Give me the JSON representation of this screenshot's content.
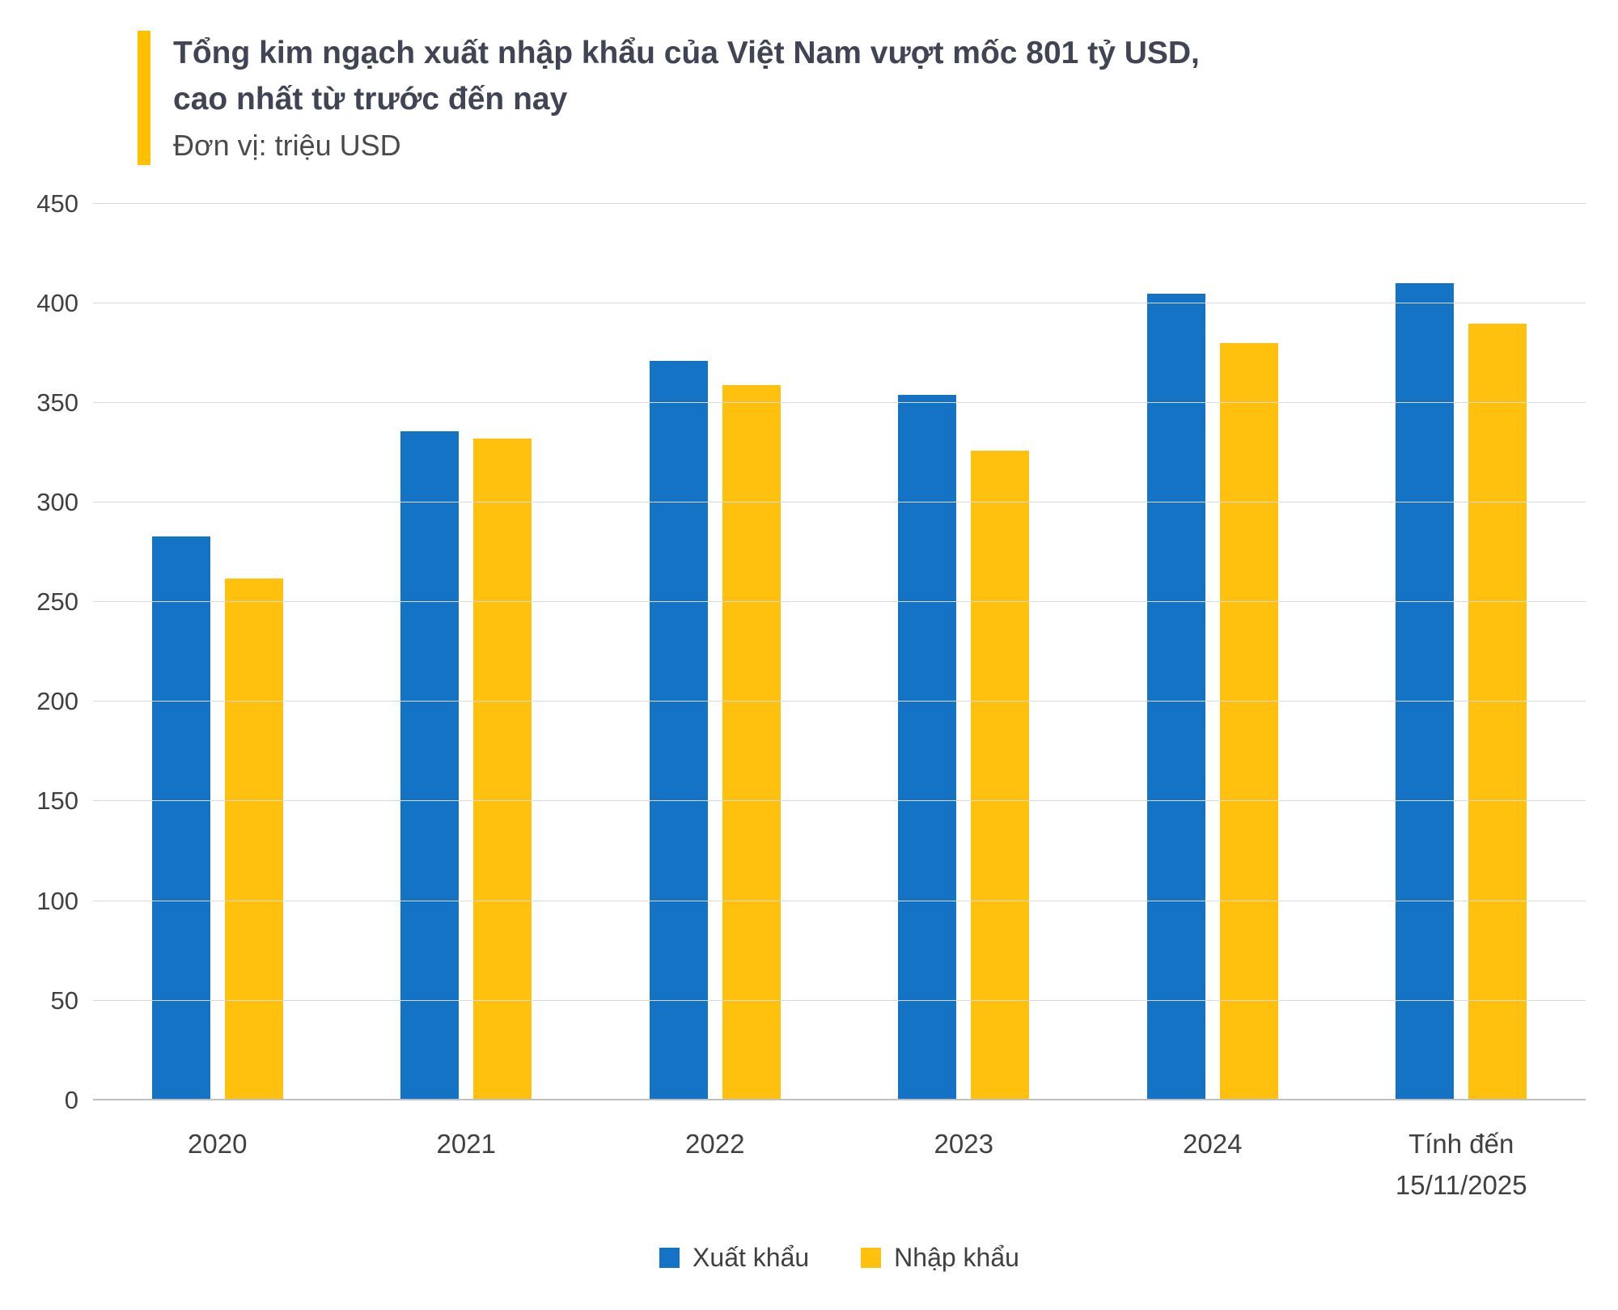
{
  "header": {
    "title": "Tổng kim ngạch xuất nhập khẩu của Việt Nam vượt mốc 801 tỷ USD, cao nhất từ trước đến nay",
    "subtitle": "Đơn vị: triệu USD",
    "accent_color": "#FFC000"
  },
  "chart_data": {
    "type": "bar",
    "title": "Tổng kim ngạch xuất nhập khẩu của Việt Nam vượt mốc 801 tỷ USD, cao nhất từ trước đến nay",
    "subtitle": "Đơn vị: triệu USD",
    "categories": [
      "2020",
      "2021",
      "2022",
      "2023",
      "2024",
      "Tính đến\n15/11/2025"
    ],
    "series": [
      {
        "name": "Xuất khẩu",
        "color": "#1473C5",
        "values": [
          283,
          336,
          371,
          354,
          405,
          410
        ]
      },
      {
        "name": "Nhập khẩu",
        "color": "#FFC10E",
        "values": [
          262,
          332,
          359,
          326,
          380,
          390
        ]
      }
    ],
    "xlabel": "",
    "ylabel": "",
    "ylim": [
      0,
      450
    ],
    "ytick_step": 50,
    "grid": true,
    "legend_position": "bottom"
  }
}
